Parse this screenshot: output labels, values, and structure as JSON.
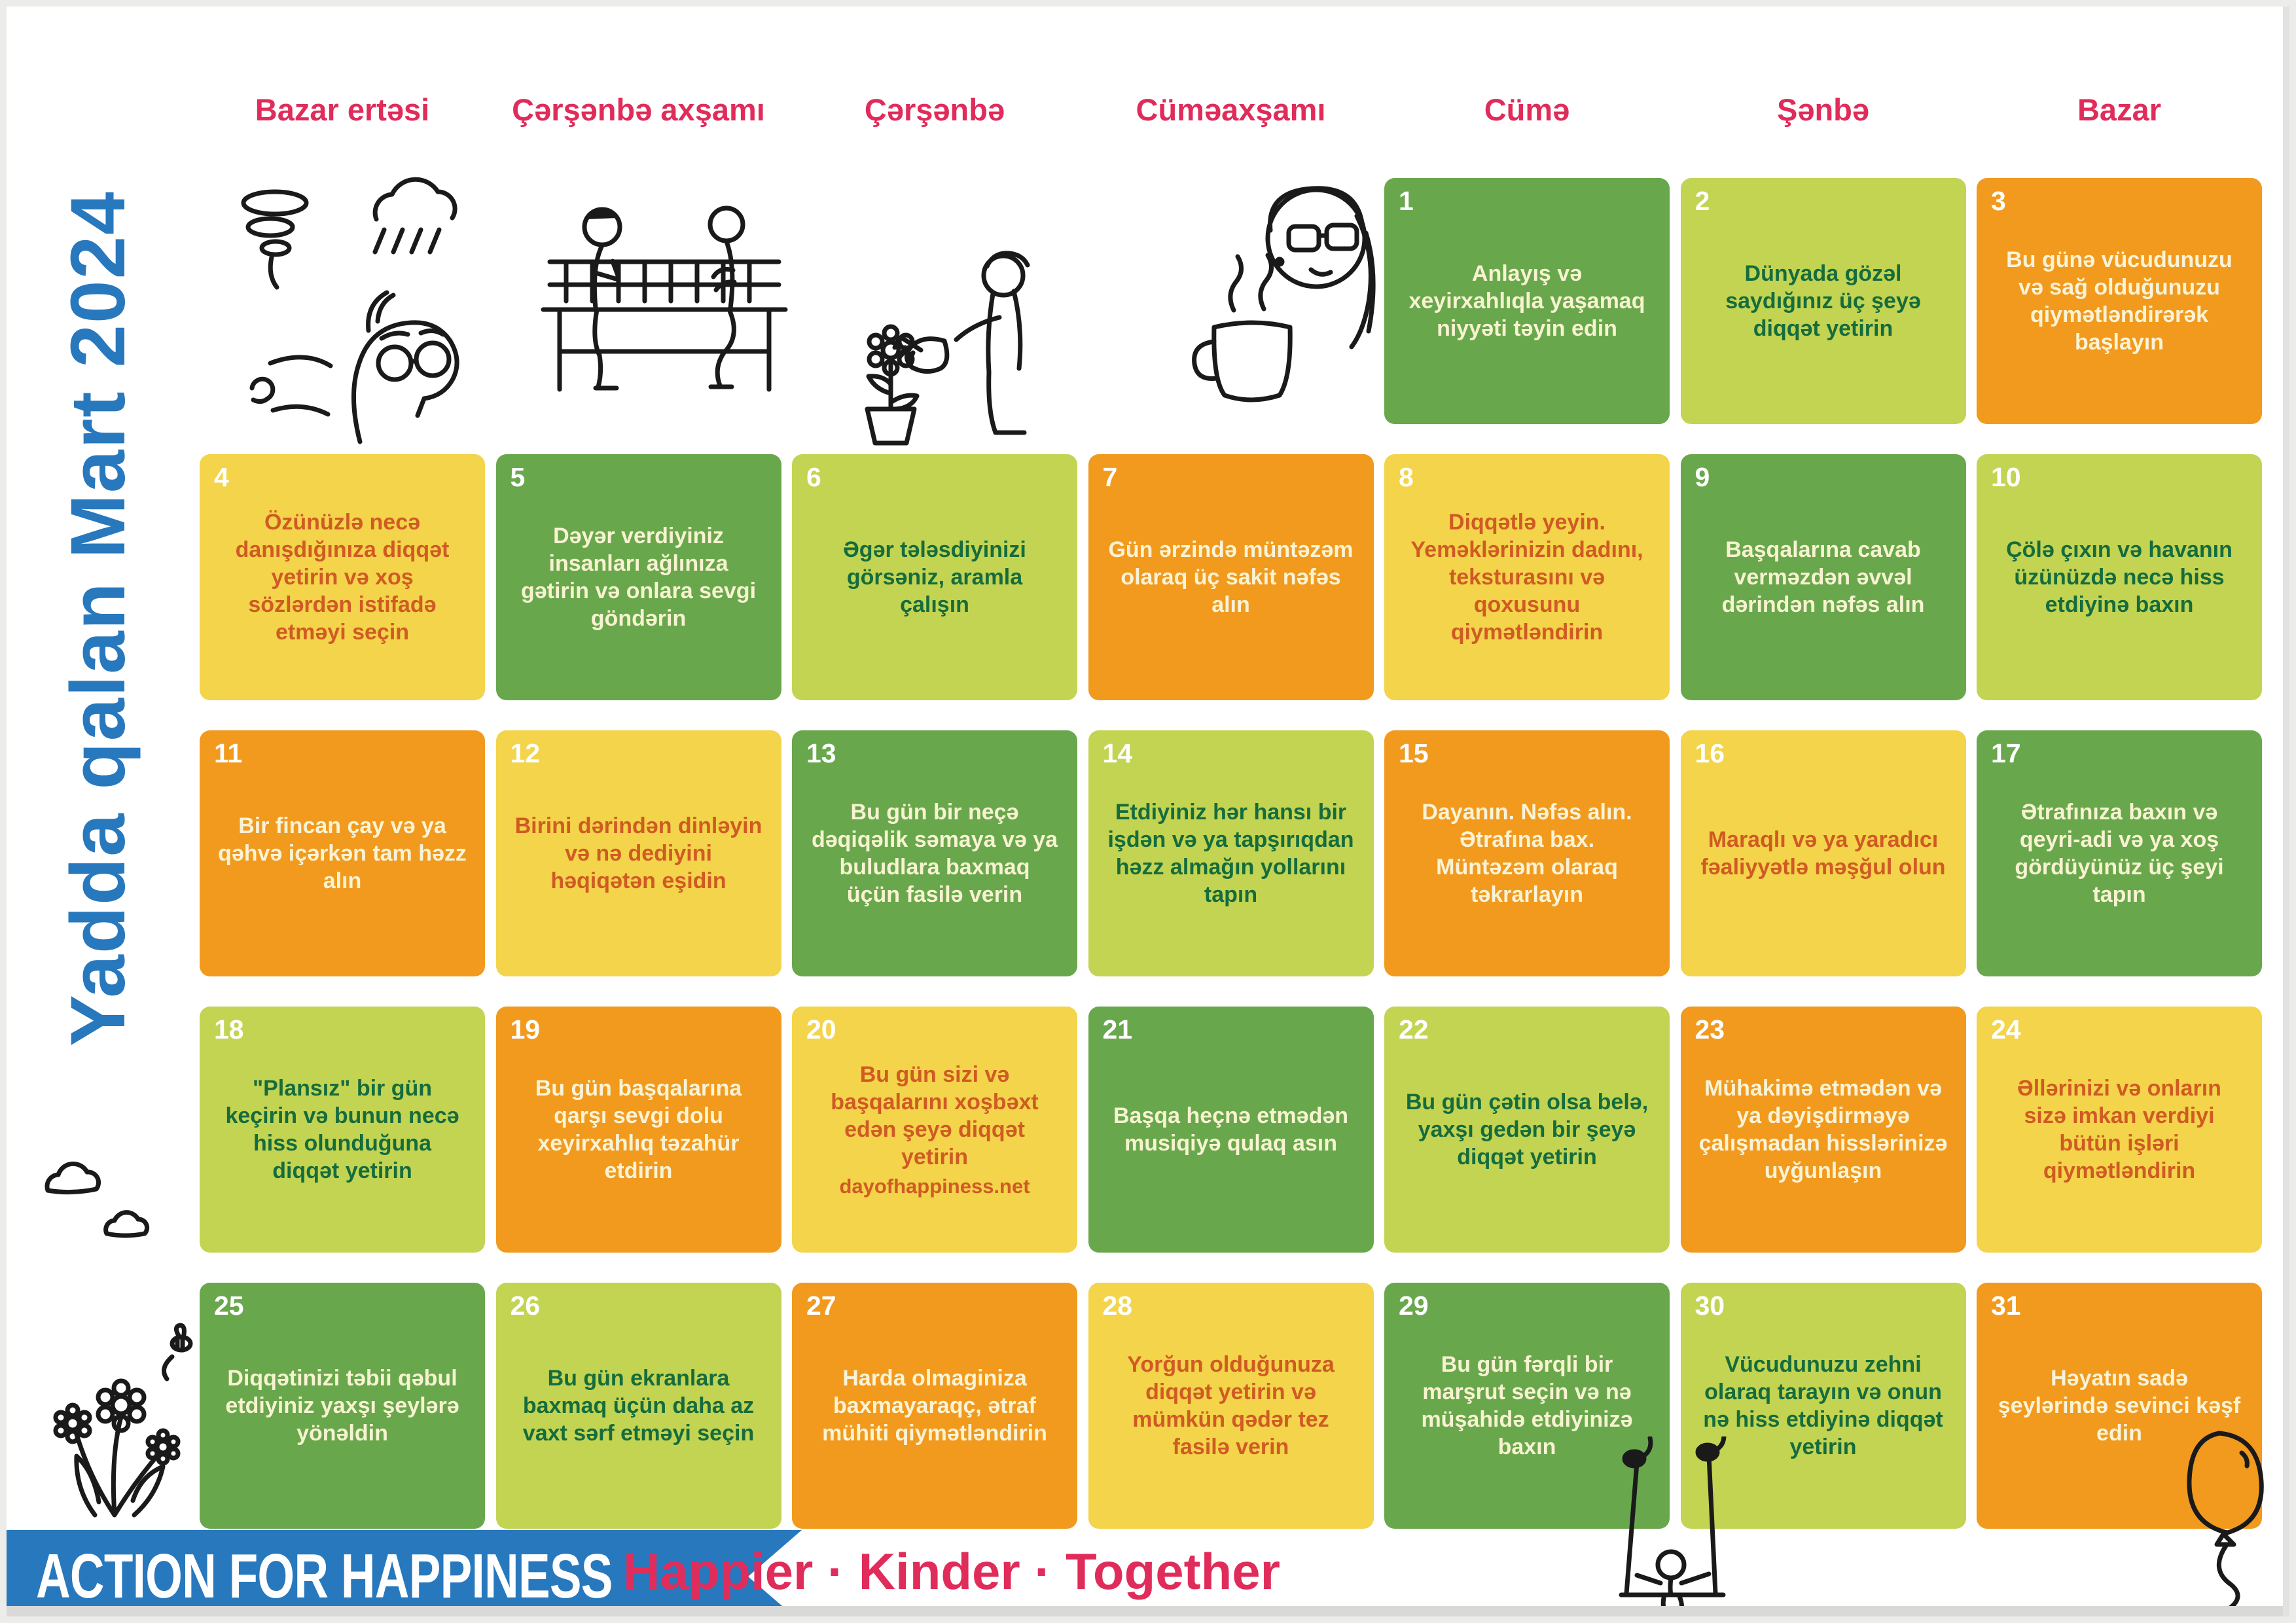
{
  "title": {
    "vertical": "Yadda qalan Mart 2024"
  },
  "weekday_headers": [
    "Bazar ertəsi",
    "Çərşənbə axşamı",
    "Çərşənbə",
    "Cüməaxşamı",
    "Cümə",
    "Şənbə",
    "Bazar"
  ],
  "colors": {
    "header_pink": "#e02c5a",
    "title_blue": "#2878bd",
    "banner_blue": "#2878bd",
    "cell_green": "#69a74c",
    "cell_lime": "#c3d452",
    "cell_orange": "#f19a1e",
    "cell_yellow": "#f3d44a",
    "text_cream": "#f7f3d1",
    "text_dark_green": "#156c3d",
    "text_red_orange": "#d05a24",
    "day_number_white": "#ffffff"
  },
  "days": [
    {
      "day": 1,
      "text": "Anlayış və xeyirxahlıqla yaşamaq niyyəti təyin edin"
    },
    {
      "day": 2,
      "text": "Dünyada gözəl saydığınız üç şeyə diqqət yetirin"
    },
    {
      "day": 3,
      "text": "Bu günə vücudunuzu və sağ olduğunuzu qiymətləndirərək başlayın"
    },
    {
      "day": 4,
      "text": "Özünüzlə necə danışdığınıza diqqət yetirin və xoş sözlərdən istifadə etməyi seçin"
    },
    {
      "day": 5,
      "text": "Dəyər verdiyiniz insanları ağlınıza gətirin və onlara sevgi göndərin"
    },
    {
      "day": 6,
      "text": "Əgər tələsdiyinizi görsəniz, aramla çalışın"
    },
    {
      "day": 7,
      "text": "Gün ərzində müntəzəm olaraq üç sakit nəfəs alın"
    },
    {
      "day": 8,
      "text": "Diqqətlə yeyin. Yeməklərinizin dadını, teksturasını və qoxusunu qiymətləndirin"
    },
    {
      "day": 9,
      "text": "Başqalarına cavab verməzdən əvvəl dərindən nəfəs alın"
    },
    {
      "day": 10,
      "text": "Çölə çıxın və havanın üzünüzdə necə hiss etdiyinə baxın"
    },
    {
      "day": 11,
      "text": "Bir fincan çay və ya qəhvə içərkən tam həzz alın"
    },
    {
      "day": 12,
      "text": "Birini dərindən dinləyin və nə dediyini həqiqətən eşidin"
    },
    {
      "day": 13,
      "text": "Bu gün bir neçə dəqiqəlik səmaya və ya buludlara baxmaq üçün fasilə verin"
    },
    {
      "day": 14,
      "text": "Etdiyiniz hər hansı bir işdən və ya tapşırıqdan həzz almağın yollarını tapın"
    },
    {
      "day": 15,
      "text": "Dayanın. Nəfəs alın. Ətrafına bax. Müntəzəm olaraq təkrarlayın"
    },
    {
      "day": 16,
      "text": "Maraqlı və ya yaradıcı fəaliyyətlə məşğul olun"
    },
    {
      "day": 17,
      "text": "Ətrafınıza baxın və qeyri-adi və ya xoş gördüyünüz üç şeyi tapın"
    },
    {
      "day": 18,
      "text": "\"Plansız\" bir gün keçirin və bunun necə hiss olunduğuna diqqət yetirin"
    },
    {
      "day": 19,
      "text": "Bu gün başqalarına qarşı sevgi dolu xeyirxahlıq təzahür etdirin"
    },
    {
      "day": 20,
      "text": "Bu gün sizi və başqalarını xoşbəxt edən şeyə diqqət yetirin",
      "link": "dayofhappiness.net"
    },
    {
      "day": 21,
      "text": "Başqa heçnə etmədən musiqiyə qulaq asın"
    },
    {
      "day": 22,
      "text": "Bu gün çətin olsa belə, yaxşı gedən bir şeyə diqqət yetirin"
    },
    {
      "day": 23,
      "text": "Mühakimə etmədən və ya dəyişdirməyə çalışmadan hisslərinizə uyğunlaşın"
    },
    {
      "day": 24,
      "text": "Əllərinizi və onların sizə imkan verdiyi bütün işləri qiymətləndirin"
    },
    {
      "day": 25,
      "text": "Diqqətinizi təbii qəbul etdiyiniz yaxşı şeylərə yönəldin"
    },
    {
      "day": 26,
      "text": "Bu gün ekranlara baxmaq üçün daha az vaxt sərf etməyi seçin"
    },
    {
      "day": 27,
      "text": "Harda olmaginiza baxmayaraqç, ətraf mühiti qiymətləndirin"
    },
    {
      "day": 28,
      "text": "Yorğun olduğunuza diqqət yetirin və mümkün qədər tez fasilə verin"
    },
    {
      "day": 29,
      "text": "Bu gün fərqli bir marşrut seçin və nə müşahidə etdiyinizə baxın"
    },
    {
      "day": 30,
      "text": "Vücudunuzu zehni olaraq tarayın və onun nə hiss etdiyinə diqqət yetirin"
    },
    {
      "day": 31,
      "text": "Həyatın sadə şeylərində sevinci kəşf edin"
    }
  ],
  "color_cycle_by_day": [
    "green",
    "lime",
    "orange",
    "yellow"
  ],
  "footer": {
    "banner": "ACTION FOR HAPPINESS",
    "tagline": "Happier · Kinder · Together"
  },
  "doodles": [
    "storm-and-thinker-doodle",
    "bench-conversation-doodle",
    "watering-flower-doodle",
    "woman-with-mug-doodle",
    "clouds-doodle",
    "daffodils-doodle",
    "swing-on-notes-doodle",
    "balloon-doodle"
  ]
}
